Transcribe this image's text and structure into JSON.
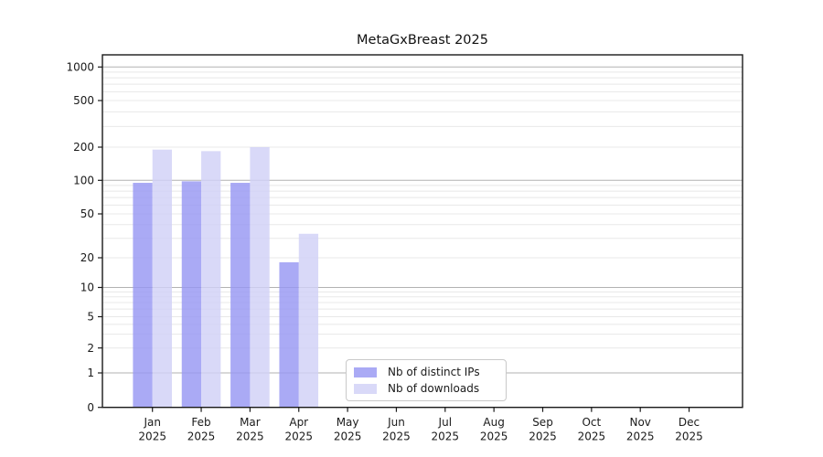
{
  "chart_data": {
    "type": "bar",
    "title": "MetaGxBreast 2025",
    "year": "2025",
    "categories": [
      "Jan",
      "Feb",
      "Mar",
      "Apr",
      "May",
      "Jun",
      "Jul",
      "Aug",
      "Sep",
      "Oct",
      "Nov",
      "Dec"
    ],
    "series": [
      {
        "name": "Nb of distinct IPs",
        "color": "#aaaaf5",
        "values": [
          95,
          98,
          95,
          18,
          0,
          0,
          0,
          0,
          0,
          0,
          0,
          0
        ]
      },
      {
        "name": "Nb of downloads",
        "color": "#d9d9f8",
        "values": [
          190,
          184,
          200,
          33,
          0,
          0,
          0,
          0,
          0,
          0,
          0,
          0
        ]
      }
    ],
    "y_ticks": [
      0,
      1,
      2,
      5,
      10,
      20,
      50,
      100,
      200,
      500,
      1000
    ],
    "ylim": [
      0,
      1400
    ],
    "scale": "symlog",
    "grid": true,
    "legend_position": "inside-bottom-center",
    "colors": {
      "major_grid": "#b2b2b2",
      "minor_grid": "#e8e8e8",
      "axis": "#1a1a1a",
      "background": "#ffffff"
    }
  }
}
